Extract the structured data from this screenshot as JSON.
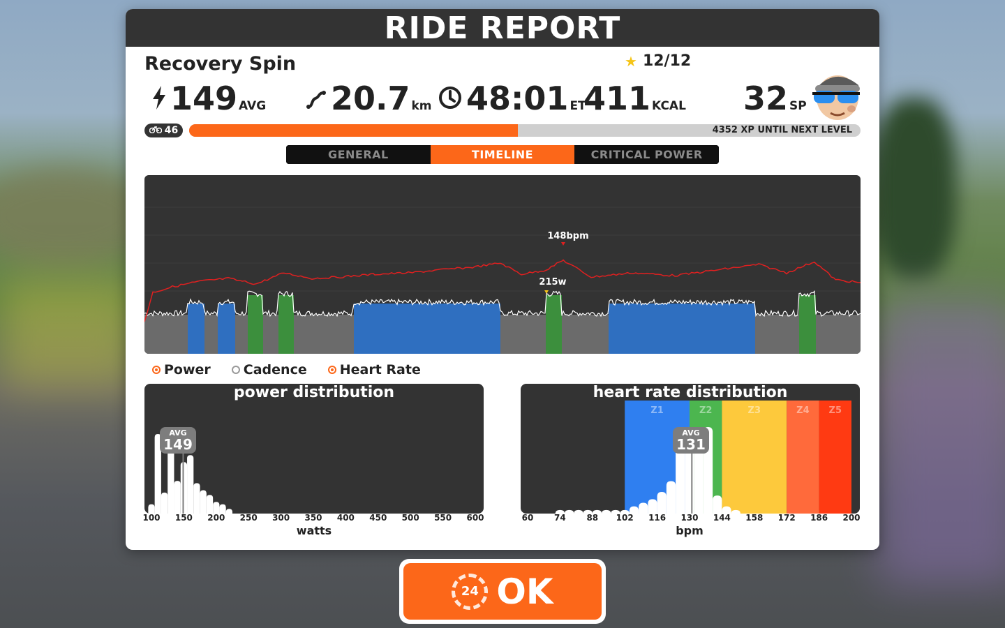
{
  "title": "RIDE REPORT",
  "ride_name": "Recovery Spin",
  "stars": "12/12",
  "stats": {
    "power": {
      "value": "149",
      "unit": "AVG",
      "icon": "lightning-icon"
    },
    "distance": {
      "value": "20.7",
      "unit": "km",
      "icon": "route-icon"
    },
    "time": {
      "value": "48:01",
      "unit": "ET",
      "icon": "clock-icon"
    },
    "calories": {
      "value": "411",
      "unit": "KCAL"
    },
    "sport_points": {
      "value": "32",
      "unit": "SP"
    }
  },
  "level": {
    "value": "46",
    "xp_text": "4352 XP UNTIL NEXT LEVEL",
    "progress": 0.49
  },
  "tabs": [
    {
      "label": "GENERAL",
      "active": false
    },
    {
      "label": "TIMELINE",
      "active": true
    },
    {
      "label": "CRITICAL POWER",
      "active": false
    }
  ],
  "timeline": {
    "hr_peak_label": "148bpm",
    "power_peak_label": "215w",
    "zone_colors": {
      "gray": "#6b6b6b",
      "blue": "#2f6fc0",
      "green": "#3c8f3d"
    }
  },
  "legend": [
    {
      "label": "Power",
      "on": true
    },
    {
      "label": "Cadence",
      "on": false
    },
    {
      "label": "Heart Rate",
      "on": true
    }
  ],
  "power_dist": {
    "title": "power distribution",
    "avg_label": "AVG",
    "avg_value": "149",
    "axis_unit": "watts",
    "ticks": [
      "100",
      "150",
      "200",
      "250",
      "300",
      "350",
      "400",
      "450",
      "500",
      "550",
      "600"
    ]
  },
  "hr_dist": {
    "title": "heart rate distribution",
    "avg_label": "AVG",
    "avg_value": "131",
    "axis_unit": "bpm",
    "ticks": [
      "60",
      "74",
      "88",
      "102",
      "116",
      "130",
      "144",
      "158",
      "172",
      "186",
      "200"
    ],
    "zones": [
      {
        "label": "Z1",
        "color": "#2f7ff0"
      },
      {
        "label": "Z2",
        "color": "#4cb64f"
      },
      {
        "label": "Z3",
        "color": "#fdc93c"
      },
      {
        "label": "Z4",
        "color": "#ff6a3b"
      },
      {
        "label": "Z5",
        "color": "#ff3a12"
      }
    ]
  },
  "chart_data": [
    {
      "type": "bar",
      "title": "power distribution",
      "xlabel": "watts",
      "categories": [
        "100",
        "110",
        "120",
        "130",
        "140",
        "150",
        "160",
        "170",
        "180",
        "190",
        "200",
        "210",
        "220"
      ],
      "values": [
        4,
        34,
        9,
        37,
        14,
        22,
        25,
        13,
        10,
        8,
        5,
        4,
        2
      ],
      "xlim": [
        100,
        600
      ]
    },
    {
      "type": "bar",
      "title": "heart rate distribution",
      "xlabel": "bpm",
      "categories": [
        "74",
        "78",
        "82",
        "86",
        "90",
        "94",
        "98",
        "102",
        "106",
        "110",
        "114",
        "118",
        "122",
        "126",
        "130",
        "134",
        "138",
        "142",
        "146",
        "150"
      ],
      "values": [
        2,
        2,
        2,
        2,
        2,
        2,
        2,
        2,
        4,
        6,
        8,
        12,
        18,
        40,
        36,
        42,
        48,
        10,
        4,
        2
      ],
      "xlim": [
        60,
        200
      ]
    }
  ],
  "ok_button": {
    "label": "OK",
    "countdown": "24"
  },
  "colors": {
    "accent": "#fc6719",
    "dark": "#333333"
  }
}
